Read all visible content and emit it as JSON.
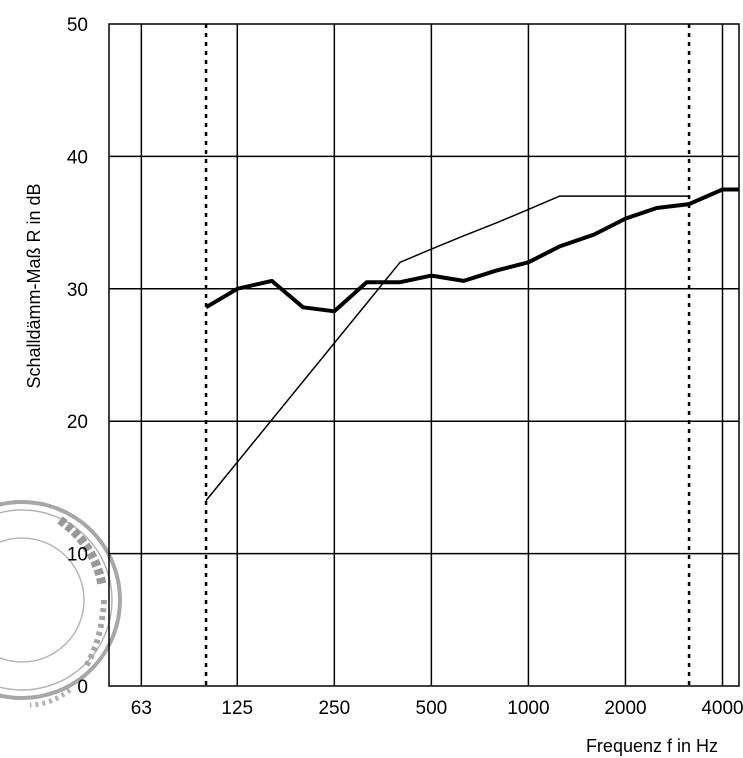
{
  "chart_data": {
    "type": "line",
    "xlabel": "Frequenz f in Hz",
    "ylabel": "Schalldämm-Maß R in dB",
    "ylim": [
      0,
      50
    ],
    "y_ticks": [
      0,
      10,
      20,
      30,
      40,
      50
    ],
    "x_scale": "log",
    "xlim": [
      50,
      4500
    ],
    "x_ticks": [
      "63",
      "125",
      "250",
      "500",
      "1000",
      "2000",
      "4000"
    ],
    "x_tick_values": [
      63,
      125,
      250,
      500,
      1000,
      2000,
      4000
    ],
    "grid": true,
    "reference_lines": [
      100,
      3150
    ],
    "series": [
      {
        "style": "thick",
        "x": [
          100,
          125,
          160,
          200,
          250,
          315,
          400,
          500,
          630,
          800,
          1000,
          1250,
          1600,
          2000,
          2500,
          3150,
          4000,
          5000
        ],
        "y": [
          28.6,
          30.0,
          30.6,
          28.6,
          28.3,
          30.5,
          30.5,
          31.0,
          30.6,
          31.4,
          32.0,
          33.2,
          34.1,
          35.3,
          36.1,
          36.4,
          37.5,
          37.5
        ]
      },
      {
        "style": "thin",
        "x": [
          100,
          400,
          500,
          630,
          800,
          1000,
          1250,
          1600,
          2000,
          2500,
          3150
        ],
        "y": [
          14,
          32,
          33,
          34,
          35,
          36,
          37,
          37,
          37,
          37,
          37
        ]
      }
    ]
  },
  "stamp": {
    "visible_text": "...messtechnik",
    "note": "partial circular ink stamp at left edge"
  }
}
